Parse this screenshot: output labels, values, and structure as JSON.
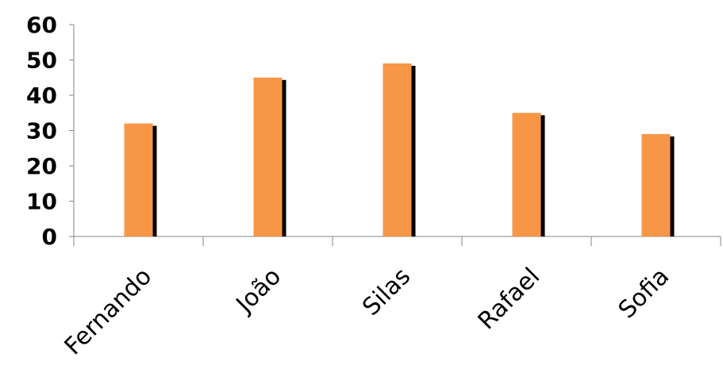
{
  "chart_data": {
    "type": "bar",
    "categories": [
      "Fernando",
      "João",
      "Silas",
      "Rafael",
      "Sofia"
    ],
    "values": [
      32,
      45,
      49,
      35,
      29
    ],
    "ylim": [
      0,
      60
    ],
    "yticks": [
      0,
      10,
      20,
      30,
      40,
      50,
      60
    ],
    "grid": false,
    "legend": "none",
    "bar_color": "#F79646",
    "shadow_color": "#000000"
  }
}
